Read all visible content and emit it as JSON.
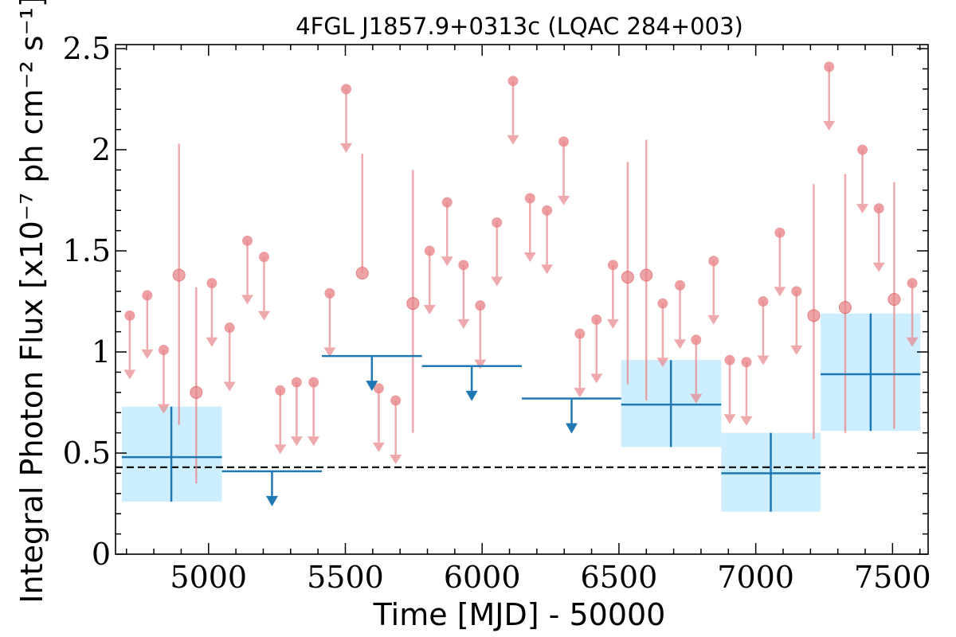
{
  "chart_data": {
    "type": "scatter",
    "title": "4FGL J1857.9+0313c (LQAC 284+003)",
    "xlabel": "Time [MJD] - 50000",
    "ylabel": "Integral Photon Flux [x10⁻⁷ ph cm⁻² s⁻¹]",
    "xlim": [
      4660,
      7630
    ],
    "ylim": [
      0,
      2.52
    ],
    "x_ticks": [
      5000,
      5500,
      6000,
      6500,
      7000,
      7500
    ],
    "y_ticks": [
      0,
      0.5,
      1,
      1.5,
      2,
      2.5
    ],
    "y_tick_labels": [
      "0",
      "0.5",
      "1",
      "1.5",
      "2",
      "2.5"
    ],
    "baseline_flux": 0.43,
    "colors": {
      "short_bins": "#e8868a",
      "long_bins": "#1f77b4",
      "long_bin_error_band": "#cdeeff",
      "baseline": "#000000"
    },
    "series": [
      {
        "points": [
          {
            "x": 4892,
            "y": 1.38,
            "yerr_low": 0.64,
            "yerr_high": 2.03
          },
          {
            "x": 4955,
            "y": 0.8,
            "yerr_low": 0.35,
            "yerr_high": 1.32
          },
          {
            "x": 5562,
            "y": 1.39,
            "yerr_low": 1.39,
            "yerr_high": 1.98
          },
          {
            "x": 5747,
            "y": 1.24,
            "yerr_low": 0.6,
            "yerr_high": 1.9
          },
          {
            "x": 6532,
            "y": 1.37,
            "yerr_low": 0.84,
            "yerr_high": 1.94
          },
          {
            "x": 6600,
            "y": 1.38,
            "yerr_low": 0.76,
            "yerr_high": 2.05
          },
          {
            "x": 7212,
            "y": 1.18,
            "yerr_low": 0.57,
            "yerr_high": 1.83
          },
          {
            "x": 7327,
            "y": 1.22,
            "yerr_low": 0.6,
            "yerr_high": 1.88
          },
          {
            "x": 7506,
            "y": 1.26,
            "yerr_low": 0.62,
            "yerr_high": 1.84
          }
        ],
        "upper_limits": [
          {
            "x": 4712,
            "y": 1.18
          },
          {
            "x": 4776,
            "y": 1.28
          },
          {
            "x": 4836,
            "y": 1.01
          },
          {
            "x": 5012,
            "y": 1.34
          },
          {
            "x": 5077,
            "y": 1.12
          },
          {
            "x": 5142,
            "y": 1.55
          },
          {
            "x": 5203,
            "y": 1.47
          },
          {
            "x": 5262,
            "y": 0.81
          },
          {
            "x": 5322,
            "y": 0.85
          },
          {
            "x": 5384,
            "y": 0.85
          },
          {
            "x": 5443,
            "y": 1.29
          },
          {
            "x": 5503,
            "y": 2.3
          },
          {
            "x": 5622,
            "y": 0.82
          },
          {
            "x": 5684,
            "y": 0.76
          },
          {
            "x": 5808,
            "y": 1.5
          },
          {
            "x": 5872,
            "y": 1.74
          },
          {
            "x": 5932,
            "y": 1.43
          },
          {
            "x": 5993,
            "y": 1.23
          },
          {
            "x": 6054,
            "y": 1.64
          },
          {
            "x": 6113,
            "y": 2.34
          },
          {
            "x": 6175,
            "y": 1.76
          },
          {
            "x": 6237,
            "y": 1.7
          },
          {
            "x": 6298,
            "y": 2.04
          },
          {
            "x": 6357,
            "y": 1.09
          },
          {
            "x": 6418,
            "y": 1.16
          },
          {
            "x": 6478,
            "y": 1.43
          },
          {
            "x": 6660,
            "y": 1.24
          },
          {
            "x": 6723,
            "y": 1.33
          },
          {
            "x": 6782,
            "y": 1.06
          },
          {
            "x": 6846,
            "y": 1.45
          },
          {
            "x": 6905,
            "y": 0.96
          },
          {
            "x": 6966,
            "y": 0.95
          },
          {
            "x": 7027,
            "y": 1.25
          },
          {
            "x": 7088,
            "y": 1.59
          },
          {
            "x": 7149,
            "y": 1.3
          },
          {
            "x": 7268,
            "y": 2.41
          },
          {
            "x": 7390,
            "y": 2.0
          },
          {
            "x": 7450,
            "y": 1.71
          },
          {
            "x": 7572,
            "y": 1.34
          }
        ]
      },
      {
        "points": [
          {
            "x": 4864,
            "x_low": 4683,
            "x_high": 5049,
            "y": 0.48,
            "yerr_low": 0.26,
            "yerr_high": 0.73
          },
          {
            "x": 6690,
            "x_low": 6508,
            "x_high": 6874,
            "y": 0.74,
            "yerr_low": 0.53,
            "yerr_high": 0.96
          },
          {
            "x": 7055,
            "x_low": 6874,
            "x_high": 7237,
            "y": 0.4,
            "yerr_low": 0.21,
            "yerr_high": 0.6
          },
          {
            "x": 7420,
            "x_low": 7237,
            "x_high": 7602,
            "y": 0.89,
            "yerr_low": 0.61,
            "yerr_high": 1.19
          }
        ],
        "upper_limits": [
          {
            "x": 5232,
            "x_low": 5049,
            "x_high": 5414,
            "y": 0.41
          },
          {
            "x": 5597,
            "x_low": 5414,
            "x_high": 5780,
            "y": 0.98
          },
          {
            "x": 5962,
            "x_low": 5780,
            "x_high": 6145,
            "y": 0.93
          },
          {
            "x": 6327,
            "x_low": 6145,
            "x_high": 6508,
            "y": 0.77
          }
        ]
      }
    ]
  }
}
